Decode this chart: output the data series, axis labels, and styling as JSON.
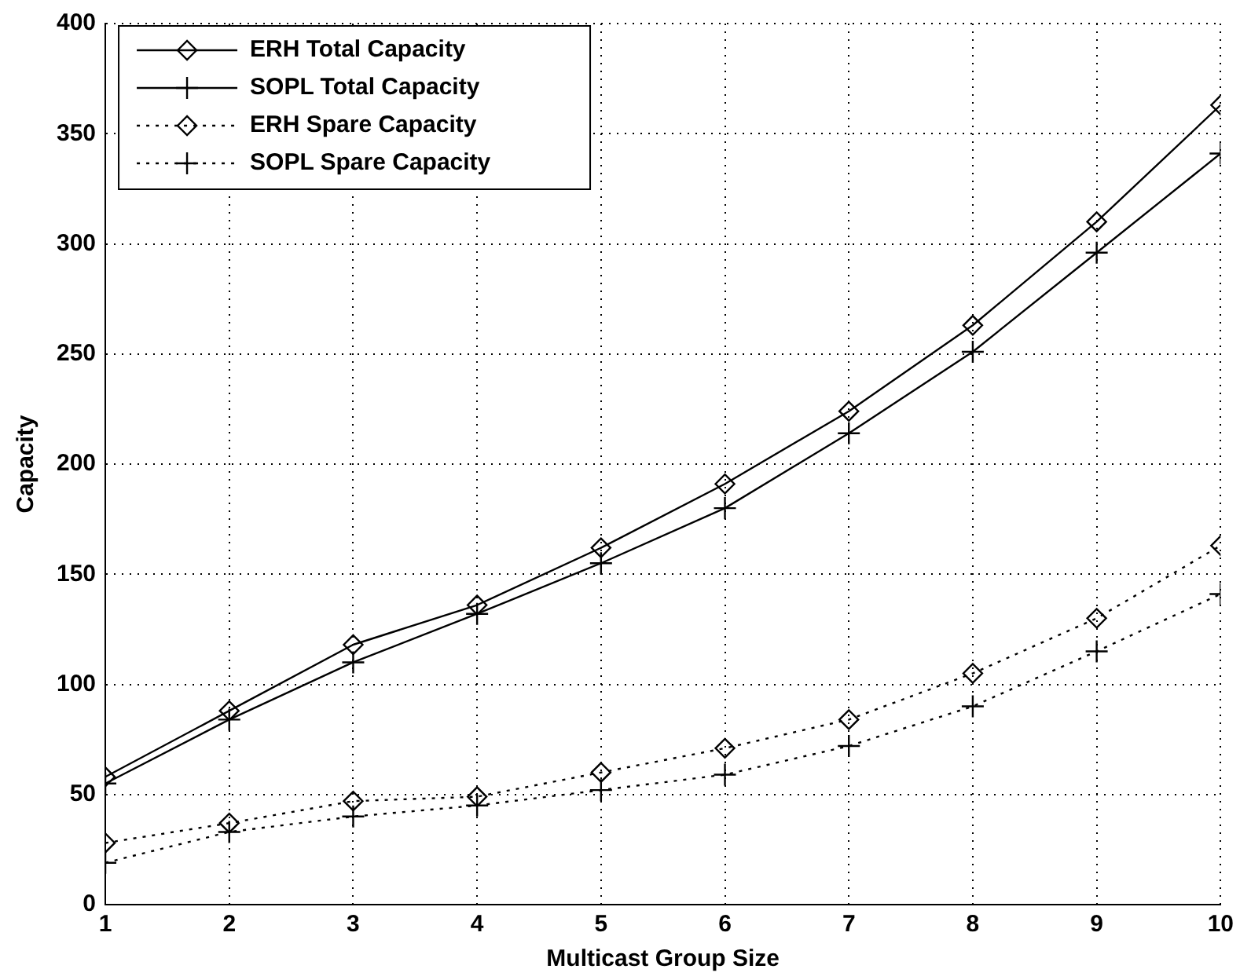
{
  "chart_data": {
    "type": "line",
    "xlabel": "Multicast Group Size",
    "ylabel": "Capacity",
    "x": [
      1,
      2,
      3,
      4,
      5,
      6,
      7,
      8,
      9,
      10
    ],
    "xlim": [
      1,
      10
    ],
    "xticks": [
      1,
      2,
      3,
      4,
      5,
      6,
      7,
      8,
      9,
      10
    ],
    "ylim": [
      0,
      400
    ],
    "yticks": [
      0,
      50,
      100,
      150,
      200,
      250,
      300,
      350,
      400
    ],
    "grid": true,
    "legend": "top left",
    "series": [
      {
        "name": "ERH Total Capacity",
        "color": "#000000",
        "marker": "diamond",
        "line_style": "solid",
        "values": [
          58,
          88,
          118,
          136,
          162,
          191,
          224,
          263,
          310,
          363
        ]
      },
      {
        "name": "SOPL Total Capacity",
        "color": "#000000",
        "marker": "cross",
        "line_style": "solid",
        "values": [
          55,
          84,
          110,
          132,
          155,
          180,
          214,
          251,
          296,
          341
        ]
      },
      {
        "name": "ERH Spare Capacity",
        "color": "#000000",
        "marker": "diamond",
        "line_style": "dotted",
        "values": [
          28,
          37,
          47,
          49,
          60,
          71,
          84,
          105,
          130,
          163
        ]
      },
      {
        "name": "SOPL Spare Capacity",
        "color": "#000000",
        "marker": "cross",
        "line_style": "dotted",
        "values": [
          19,
          33,
          40,
          45,
          52,
          59,
          72,
          90,
          115,
          141
        ]
      }
    ]
  }
}
